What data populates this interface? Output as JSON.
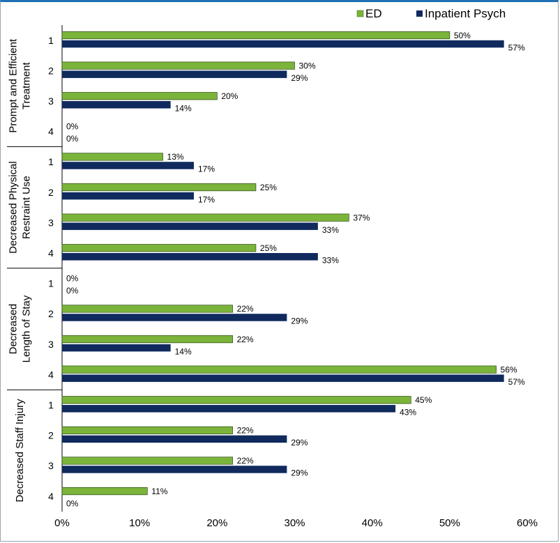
{
  "chart_data": {
    "type": "bar",
    "orientation": "horizontal",
    "legend": {
      "position": "top-right",
      "entries": [
        "ED",
        "Inpatient Psych"
      ]
    },
    "colors": {
      "ED": "#7ab43a",
      "Inpatient Psych": "#102a5e"
    },
    "xlim": [
      0,
      60
    ],
    "xticks": [
      "0%",
      "10%",
      "20%",
      "30%",
      "40%",
      "50%",
      "60%"
    ],
    "grid": false,
    "groups": [
      {
        "name": "Prompt and Efficient Treatment",
        "name_lines": [
          "Prompt and Efficient",
          "Treatment"
        ],
        "categories": [
          "1",
          "2",
          "3",
          "4"
        ],
        "series": [
          {
            "name": "ED",
            "values": [
              50,
              30,
              20,
              0
            ]
          },
          {
            "name": "Inpatient Psych",
            "values": [
              57,
              29,
              14,
              0
            ]
          }
        ]
      },
      {
        "name": "Decreased Physical Restraint Use",
        "name_lines": [
          "Decreased Physical",
          "Restraint Use"
        ],
        "categories": [
          "1",
          "2",
          "3",
          "4"
        ],
        "series": [
          {
            "name": "ED",
            "values": [
              13,
              25,
              37,
              25
            ]
          },
          {
            "name": "Inpatient Psych",
            "values": [
              17,
              17,
              33,
              33
            ]
          }
        ]
      },
      {
        "name": "Decreased Length of Stay",
        "name_lines": [
          "Decreased",
          "Length of Stay"
        ],
        "categories": [
          "1",
          "2",
          "3",
          "4"
        ],
        "series": [
          {
            "name": "ED",
            "values": [
              0,
              22,
              22,
              56
            ]
          },
          {
            "name": "Inpatient Psych",
            "values": [
              0,
              29,
              14,
              57
            ]
          }
        ]
      },
      {
        "name": "Decreased Staff Injury",
        "name_lines": [
          "Decreased Staff Injury"
        ],
        "categories": [
          "1",
          "2",
          "3",
          "4"
        ],
        "series": [
          {
            "name": "ED",
            "values": [
              45,
              22,
              22,
              11
            ]
          },
          {
            "name": "Inpatient Psych",
            "values": [
              43,
              29,
              29,
              0
            ]
          }
        ]
      }
    ]
  }
}
